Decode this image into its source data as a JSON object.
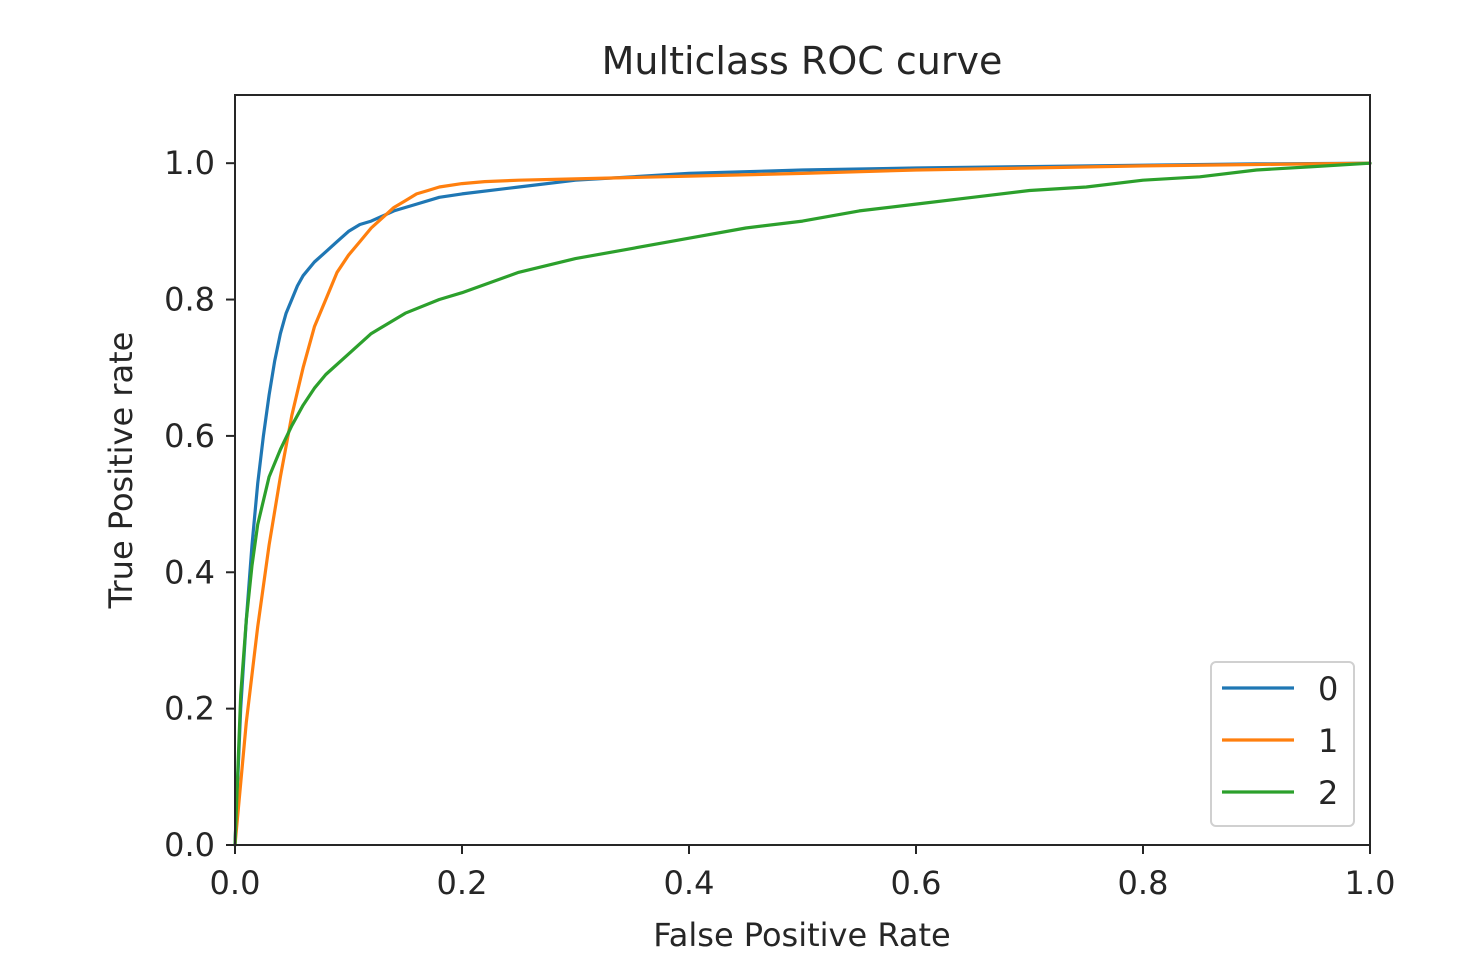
{
  "chart_data": {
    "type": "line",
    "title": "Multiclass ROC curve",
    "xlabel": "False Positive Rate",
    "ylabel": "True Positive rate",
    "xlim": [
      0,
      1
    ],
    "ylim": [
      0,
      1.1
    ],
    "xticks": [
      0.0,
      0.2,
      0.4,
      0.6,
      0.8,
      1.0
    ],
    "xtick_labels": [
      "0.0",
      "0.2",
      "0.4",
      "0.6",
      "0.8",
      "1.0"
    ],
    "yticks": [
      0.0,
      0.2,
      0.4,
      0.6,
      0.8,
      1.0
    ],
    "ytick_labels": [
      "0.0",
      "0.2",
      "0.4",
      "0.6",
      "0.8",
      "1.0"
    ],
    "grid": false,
    "legend_position": "lower-right",
    "series": [
      {
        "name": "0",
        "color": "#1f77b4",
        "x": [
          0,
          0.005,
          0.01,
          0.015,
          0.02,
          0.025,
          0.03,
          0.035,
          0.04,
          0.045,
          0.05,
          0.055,
          0.06,
          0.07,
          0.08,
          0.09,
          0.1,
          0.11,
          0.12,
          0.14,
          0.16,
          0.18,
          0.2,
          0.25,
          0.3,
          0.35,
          0.4,
          0.5,
          0.6,
          0.7,
          0.8,
          0.9,
          1.0
        ],
        "y": [
          0,
          0.2,
          0.33,
          0.44,
          0.53,
          0.6,
          0.66,
          0.71,
          0.75,
          0.78,
          0.8,
          0.82,
          0.835,
          0.855,
          0.87,
          0.885,
          0.9,
          0.91,
          0.915,
          0.93,
          0.94,
          0.95,
          0.955,
          0.965,
          0.975,
          0.98,
          0.985,
          0.99,
          0.993,
          0.995,
          0.997,
          0.999,
          1.0
        ]
      },
      {
        "name": "1",
        "color": "#ff7f0e",
        "x": [
          0,
          0.01,
          0.02,
          0.03,
          0.04,
          0.05,
          0.06,
          0.07,
          0.08,
          0.09,
          0.1,
          0.11,
          0.12,
          0.13,
          0.14,
          0.15,
          0.16,
          0.17,
          0.18,
          0.2,
          0.22,
          0.25,
          0.3,
          0.35,
          0.4,
          0.5,
          0.6,
          0.7,
          0.8,
          0.9,
          1.0
        ],
        "y": [
          0,
          0.18,
          0.32,
          0.44,
          0.54,
          0.63,
          0.7,
          0.76,
          0.8,
          0.84,
          0.865,
          0.885,
          0.905,
          0.92,
          0.935,
          0.945,
          0.955,
          0.96,
          0.965,
          0.97,
          0.973,
          0.975,
          0.977,
          0.979,
          0.981,
          0.985,
          0.99,
          0.993,
          0.996,
          0.998,
          1.0
        ]
      },
      {
        "name": "2",
        "color": "#2ca02c",
        "x": [
          0,
          0.005,
          0.01,
          0.015,
          0.02,
          0.03,
          0.04,
          0.05,
          0.06,
          0.07,
          0.08,
          0.1,
          0.12,
          0.15,
          0.18,
          0.2,
          0.25,
          0.3,
          0.35,
          0.4,
          0.45,
          0.5,
          0.55,
          0.6,
          0.65,
          0.7,
          0.75,
          0.8,
          0.85,
          0.9,
          0.95,
          1.0
        ],
        "y": [
          0,
          0.22,
          0.33,
          0.41,
          0.47,
          0.54,
          0.58,
          0.615,
          0.645,
          0.67,
          0.69,
          0.72,
          0.75,
          0.78,
          0.8,
          0.81,
          0.84,
          0.86,
          0.875,
          0.89,
          0.905,
          0.915,
          0.93,
          0.94,
          0.95,
          0.96,
          0.965,
          0.975,
          0.98,
          0.99,
          0.995,
          1.0
        ]
      }
    ]
  }
}
